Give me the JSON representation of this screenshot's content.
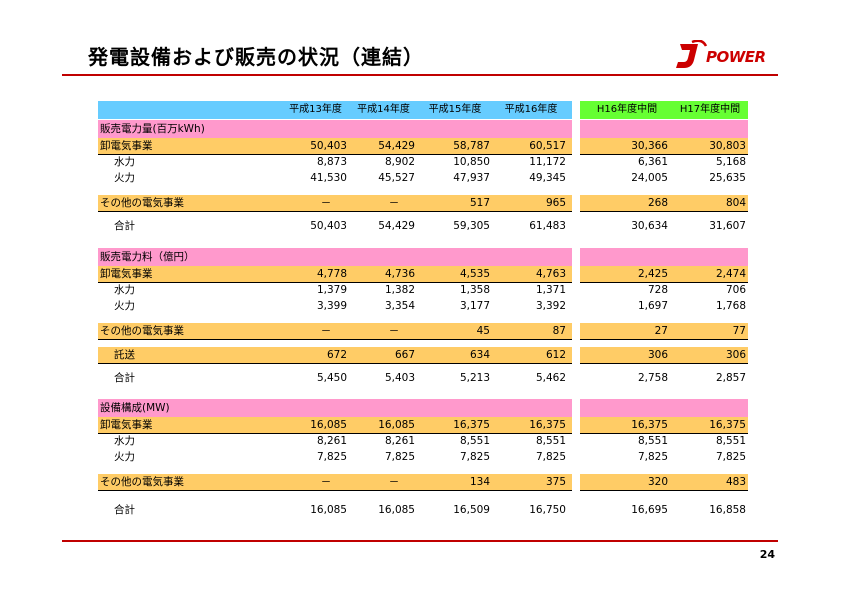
{
  "title": "発電設備および販売の状況（連結）",
  "logo_text": "POWER",
  "page_number": "24",
  "colors": {
    "header_cyan": "#66ccff",
    "header_green": "#66ff33",
    "section_pink": "#ff99cc",
    "row_orange": "#ffcc66",
    "accent_red": "#c00000"
  },
  "headers": [
    "平成13年度",
    "平成14年度",
    "平成15年度",
    "平成16年度",
    "H16年度中間",
    "H17年度中間"
  ],
  "sections": [
    {
      "title": "販売電力量(百万kWh)",
      "rows": [
        {
          "label": "卸電気事業",
          "values": [
            "50,403",
            "54,429",
            "58,787",
            "60,517",
            "30,366",
            "30,803"
          ]
        },
        {
          "label": "水力",
          "values": [
            "8,873",
            "8,902",
            "10,850",
            "11,172",
            "6,361",
            "5,168"
          ]
        },
        {
          "label": "火力",
          "values": [
            "41,530",
            "45,527",
            "47,937",
            "49,345",
            "24,005",
            "25,635"
          ]
        },
        {
          "label": "その他の電気事業",
          "values": [
            "－",
            "－",
            "517",
            "965",
            "268",
            "804"
          ]
        },
        {
          "label": "合計",
          "values": [
            "50,403",
            "54,429",
            "59,305",
            "61,483",
            "30,634",
            "31,607"
          ]
        }
      ]
    },
    {
      "title": "販売電力料（億円）",
      "rows": [
        {
          "label": "卸電気事業",
          "values": [
            "4,778",
            "4,736",
            "4,535",
            "4,763",
            "2,425",
            "2,474"
          ]
        },
        {
          "label": "水力",
          "values": [
            "1,379",
            "1,382",
            "1,358",
            "1,371",
            "728",
            "706"
          ]
        },
        {
          "label": "火力",
          "values": [
            "3,399",
            "3,354",
            "3,177",
            "3,392",
            "1,697",
            "1,768"
          ]
        },
        {
          "label": "その他の電気事業",
          "values": [
            "－",
            "－",
            "45",
            "87",
            "27",
            "77"
          ]
        },
        {
          "label": "託送",
          "values": [
            "672",
            "667",
            "634",
            "612",
            "306",
            "306"
          ]
        },
        {
          "label": "合計",
          "values": [
            "5,450",
            "5,403",
            "5,213",
            "5,462",
            "2,758",
            "2,857"
          ]
        }
      ]
    },
    {
      "title": "設備構成(MW)",
      "rows": [
        {
          "label": "卸電気事業",
          "values": [
            "16,085",
            "16,085",
            "16,375",
            "16,375",
            "16,375",
            "16,375"
          ]
        },
        {
          "label": "水力",
          "values": [
            "8,261",
            "8,261",
            "8,551",
            "8,551",
            "8,551",
            "8,551"
          ]
        },
        {
          "label": "火力",
          "values": [
            "7,825",
            "7,825",
            "7,825",
            "7,825",
            "7,825",
            "7,825"
          ]
        },
        {
          "label": "その他の電気事業",
          "values": [
            "－",
            "－",
            "134",
            "375",
            "320",
            "483"
          ]
        },
        {
          "label": "合計",
          "values": [
            "16,085",
            "16,085",
            "16,509",
            "16,750",
            "16,695",
            "16,858"
          ]
        }
      ]
    }
  ]
}
